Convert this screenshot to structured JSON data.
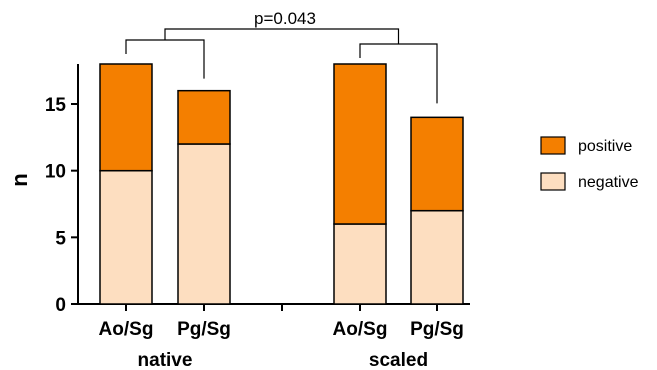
{
  "chart_data": {
    "type": "bar",
    "stacked": true,
    "ylabel": "n",
    "ylim": [
      0,
      18
    ],
    "yticks": [
      0,
      5,
      10,
      15
    ],
    "categories": [
      "Ao/Sg",
      "Pg/Sg",
      "Ao/Sg",
      "Pg/Sg"
    ],
    "groups": [
      {
        "label": "native",
        "categories": [
          0,
          1
        ]
      },
      {
        "label": "scaled",
        "categories": [
          2,
          3
        ]
      }
    ],
    "series": [
      {
        "name": "negative",
        "color": "#FDDEC0",
        "values": [
          10,
          12,
          6,
          7
        ]
      },
      {
        "name": "positive",
        "color": "#F47F00",
        "values": [
          8,
          4,
          12,
          7
        ]
      }
    ],
    "legend": {
      "position": "right",
      "order": [
        "positive",
        "negative"
      ]
    },
    "annotations": [
      {
        "text": "p=0.043",
        "type": "bracket",
        "between": [
          "native",
          "scaled"
        ]
      }
    ],
    "grid": false
  }
}
